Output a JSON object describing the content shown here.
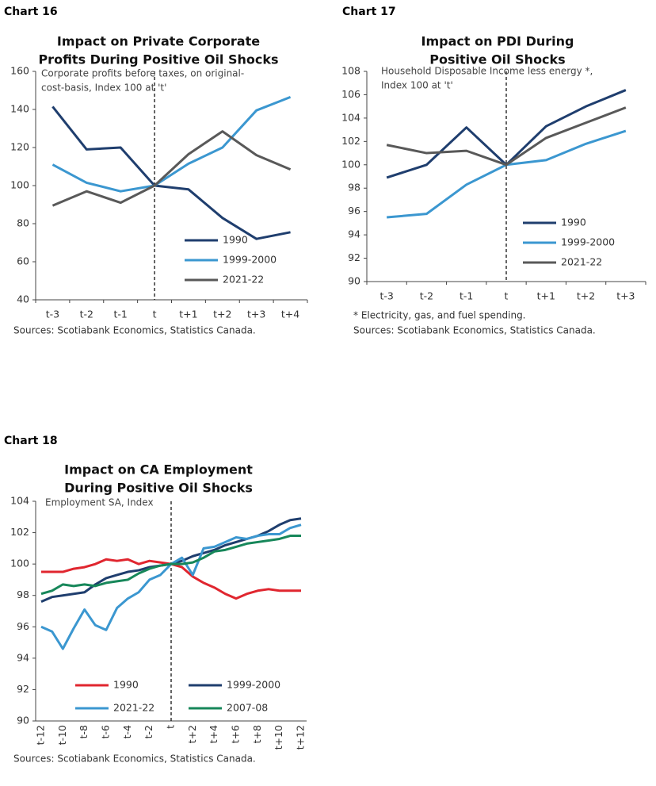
{
  "chart_data": [
    {
      "type": "line",
      "label": "Chart 16",
      "title": [
        "Impact on Private Corporate",
        "Profits During Positive Oil Shocks"
      ],
      "subtitle": [
        "Corporate profits before taxes, on original-",
        "cost-basis, Index 100 at 't'"
      ],
      "categories": [
        "t-3",
        "t-2",
        "t-1",
        "t",
        "t+1",
        "t+2",
        "t+3",
        "t+4"
      ],
      "series": [
        {
          "name": "1990",
          "color": "#1f3e6e",
          "values": [
            141.5,
            119,
            120,
            100,
            98,
            83,
            72,
            75.5
          ]
        },
        {
          "name": "1999-2000",
          "color": "#3b97d0",
          "values": [
            111,
            101.5,
            97,
            100,
            111.5,
            120,
            139.5,
            146.5
          ]
        },
        {
          "name": "2021-22",
          "color": "#595959",
          "values": [
            89.5,
            97,
            91,
            100,
            116.5,
            128.5,
            116,
            108.5
          ]
        }
      ],
      "ylim": [
        40,
        160
      ],
      "yticks": [
        40,
        60,
        80,
        100,
        120,
        140,
        160
      ],
      "reference_line": "t",
      "legend": "lower right",
      "source": "Sources: Scotiabank Economics, Statistics Canada."
    },
    {
      "type": "line",
      "label": "Chart 17",
      "title": [
        "Impact on PDI During",
        "Positive Oil Shocks"
      ],
      "subtitle": [
        "Household Disposable Income less energy *,",
        "Index 100 at 't'"
      ],
      "categories": [
        "t-3",
        "t-2",
        "t-1",
        "t",
        "t+1",
        "t+2",
        "t+3"
      ],
      "series": [
        {
          "name": "1990",
          "color": "#1f3e6e",
          "values": [
            98.9,
            100,
            103.2,
            100,
            103.3,
            105,
            106.4
          ]
        },
        {
          "name": "1999-2000",
          "color": "#3b97d0",
          "values": [
            95.5,
            95.8,
            98.3,
            100,
            100.4,
            101.8,
            102.9
          ]
        },
        {
          "name": "2021-22",
          "color": "#595959",
          "values": [
            101.7,
            101,
            101.2,
            100,
            102.3,
            103.6,
            104.9
          ]
        }
      ],
      "ylim": [
        90,
        108
      ],
      "yticks": [
        90,
        92,
        94,
        96,
        98,
        100,
        102,
        104,
        106,
        108
      ],
      "reference_line": "t",
      "legend": "lower right",
      "footnote": "* Electricity, gas, and fuel spending.",
      "source": "Sources: Scotiabank Economics, Statistics Canada."
    },
    {
      "type": "line",
      "label": "Chart 18",
      "title": [
        "Impact on CA Employment",
        "During Positive Oil Shocks"
      ],
      "subtitle": [
        "Employment SA, Index"
      ],
      "categories": [
        "t-12",
        null,
        "t-10",
        null,
        "t-8",
        null,
        "t-6",
        null,
        "t-4",
        null,
        "t-2",
        null,
        "t",
        null,
        "t+2",
        null,
        "t+4",
        null,
        "t+6",
        null,
        "t+8",
        null,
        "t+10",
        null,
        "t+12"
      ],
      "series": [
        {
          "name": "1990",
          "color": "#e0262f",
          "values": [
            99.5,
            99.5,
            99.5,
            99.7,
            99.8,
            100,
            100.3,
            100.2,
            100.3,
            100,
            100.2,
            100.1,
            100,
            99.8,
            99.2,
            98.8,
            98.5,
            98.1,
            97.8,
            98.1,
            98.3,
            98.4,
            98.3,
            98.3,
            98.3
          ]
        },
        {
          "name": "1999-2000",
          "color": "#1f3e6e",
          "values": [
            97.6,
            97.9,
            98,
            98.1,
            98.2,
            98.7,
            99.1,
            99.3,
            99.5,
            99.6,
            99.8,
            99.9,
            100,
            100.2,
            100.5,
            100.7,
            100.9,
            101.2,
            101.4,
            101.6,
            101.8,
            102.1,
            102.5,
            102.8,
            102.9
          ]
        },
        {
          "name": "2021-22",
          "color": "#3b97d0",
          "values": [
            96,
            95.7,
            94.6,
            95.9,
            97.1,
            96.1,
            95.8,
            97.2,
            97.8,
            98.2,
            99,
            99.3,
            100,
            100.4,
            99.3,
            101,
            101.1,
            101.4,
            101.7,
            101.6,
            101.8,
            101.9,
            101.9,
            102.3,
            102.5
          ]
        },
        {
          "name": "2007-08",
          "color": "#17875a",
          "values": [
            98.1,
            98.3,
            98.7,
            98.6,
            98.7,
            98.6,
            98.8,
            98.9,
            99,
            99.4,
            99.7,
            99.9,
            100,
            100,
            100.1,
            100.4,
            100.8,
            100.9,
            101.1,
            101.3,
            101.4,
            101.5,
            101.6,
            101.8,
            101.8
          ]
        }
      ],
      "ylim": [
        90,
        104
      ],
      "yticks": [
        90,
        92,
        94,
        96,
        98,
        100,
        102,
        104
      ],
      "reference_line": "t",
      "legend": "lower center",
      "source": "Sources: Scotiabank Economics, Statistics Canada."
    }
  ]
}
